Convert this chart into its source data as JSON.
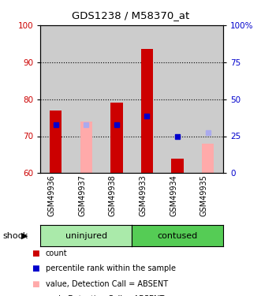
{
  "title": "GDS1238 / M58370_at",
  "categories": [
    "GSM49936",
    "GSM49937",
    "GSM49938",
    "GSM49933",
    "GSM49934",
    "GSM49935"
  ],
  "groups": [
    {
      "label": "uninjured",
      "indices": [
        0,
        1,
        2
      ]
    },
    {
      "label": "contused",
      "indices": [
        3,
        4,
        5
      ]
    }
  ],
  "ylim_left": [
    60,
    100
  ],
  "ylim_right": [
    0,
    100
  ],
  "yticks_left": [
    60,
    70,
    80,
    90,
    100
  ],
  "yticks_right": [
    0,
    25,
    50,
    75,
    100
  ],
  "ytick_labels_right": [
    "0",
    "25",
    "50",
    "75",
    "100%"
  ],
  "red_bars": [
    77.0,
    null,
    79.0,
    93.5,
    64.0,
    null
  ],
  "blue_dots": [
    73.0,
    null,
    73.0,
    75.5,
    70.0,
    null
  ],
  "pink_bars": [
    null,
    74.0,
    null,
    null,
    null,
    68.0
  ],
  "lightblue_dots": [
    null,
    73.0,
    null,
    null,
    null,
    71.0
  ],
  "bar_width": 0.4,
  "red_color": "#cc0000",
  "blue_color": "#0000cc",
  "pink_color": "#ffaaaa",
  "lightblue_color": "#aaaaee",
  "group_bg_color": "#cccccc",
  "uninjured_color": "#aaeaaa",
  "contused_color": "#55cc55",
  "ylabel_left_color": "#cc0000",
  "ylabel_right_color": "#0000cc",
  "shock_label": "shock",
  "legend_items": [
    {
      "label": "count",
      "color": "#cc0000"
    },
    {
      "label": "percentile rank within the sample",
      "color": "#0000cc"
    },
    {
      "label": "value, Detection Call = ABSENT",
      "color": "#ffaaaa"
    },
    {
      "label": "rank, Detection Call = ABSENT",
      "color": "#aaaaee"
    }
  ]
}
